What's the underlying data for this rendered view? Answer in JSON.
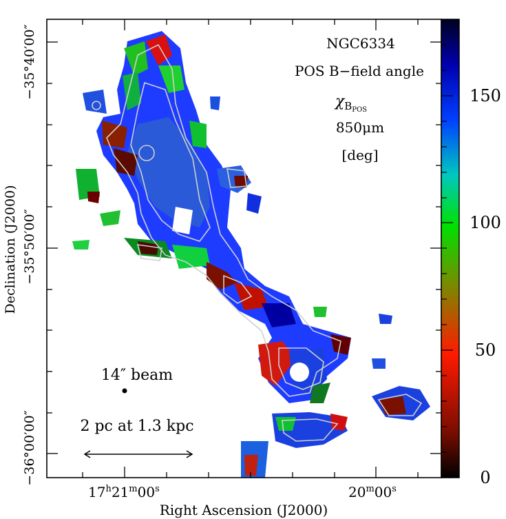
{
  "figure": {
    "annotation": {
      "source": "NGC6334",
      "quantity": "POS B−field angle",
      "symbol": "χ",
      "symbol_sub": "B",
      "symbol_subsub": "POS",
      "wavelength": "850μm",
      "unit": "[deg]"
    },
    "beam_label": "14″ beam",
    "scale_label": "2 pc at 1.3 kpc",
    "x_axis": {
      "title": "Right Ascension (J2000)",
      "ticks": [
        {
          "h": "17",
          "hu": "h",
          "m": "21",
          "mu": "m",
          "s": "00",
          "su": "s"
        },
        {
          "m": "20",
          "mu": "m",
          "s": "00",
          "su": "s"
        }
      ]
    },
    "y_axis": {
      "title": "Declination (J2000)",
      "ticks": [
        "−35°40′00″",
        "−35°50′00″",
        "−36°00′00″"
      ]
    },
    "colorbar": {
      "ticks": [
        "0",
        "50",
        "100",
        "150"
      ],
      "range": [
        0,
        180
      ],
      "stops": [
        "#000000",
        "#7a0d00",
        "#ff1a00",
        "#7a8a00",
        "#00e000",
        "#00c8c0",
        "#0040ff",
        "#0000b0",
        "#000020"
      ]
    },
    "colors": {
      "frame": "#000000",
      "contour": "#cfcfcf",
      "background": "#ffffff"
    }
  }
}
